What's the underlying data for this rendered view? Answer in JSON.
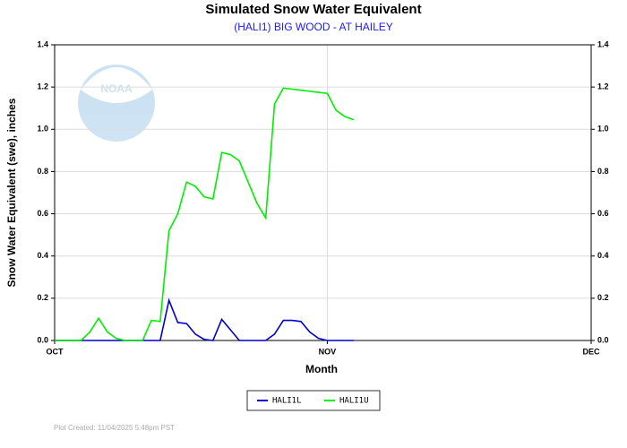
{
  "chart_data": {
    "type": "line",
    "title": "Simulated Snow Water Equivalent",
    "subtitle": "(HALI1) BIG WOOD - AT HAILEY",
    "y_label": "Snow Water Equivalent (swe),  inches",
    "x_label": "Month",
    "footer": "Plot Created: 11/04/2025 5:48pm PST",
    "x": [
      0,
      1,
      2,
      3,
      4,
      5,
      6,
      7,
      8,
      9,
      10,
      11,
      12,
      13,
      14,
      15,
      16,
      17,
      18,
      19,
      20,
      21,
      22,
      23,
      24,
      25,
      26,
      27,
      28,
      29,
      30,
      31,
      32,
      33,
      34
    ],
    "xlim": [
      0,
      61
    ],
    "xticks": [
      {
        "value": 0,
        "label": "OCT"
      },
      {
        "value": 31,
        "label": "NOV"
      },
      {
        "value": 61,
        "label": "DEC"
      }
    ],
    "ylim": [
      0,
      1.4
    ],
    "yticks": [
      {
        "value": 0,
        "label": "0.0"
      },
      {
        "value": 0.2,
        "label": "0.2"
      },
      {
        "value": 0.4,
        "label": "0.4"
      },
      {
        "value": 0.6,
        "label": "0.6"
      },
      {
        "value": 0.8,
        "label": "0.8"
      },
      {
        "value": 1,
        "label": "1.0"
      },
      {
        "value": 1.2,
        "label": "1.2"
      },
      {
        "value": 1.4,
        "label": "1.4"
      }
    ],
    "grid": true,
    "legend": "bottom",
    "series": [
      {
        "name": "HALI1L",
        "color": "#0000cc",
        "values": [
          0,
          0,
          0,
          0,
          0,
          0,
          0,
          0,
          0,
          0,
          0,
          0,
          0,
          0.19,
          0.085,
          0.08,
          0.03,
          0.005,
          0,
          0.1,
          0.05,
          0,
          0,
          0,
          0,
          0.03,
          0.095,
          0.095,
          0.09,
          0.04,
          0.01,
          0,
          0,
          0,
          0
        ]
      },
      {
        "name": "HALI1U",
        "color": "#00ee00",
        "values": [
          0,
          0,
          0,
          0,
          0.04,
          0.105,
          0.04,
          0.01,
          0,
          0,
          0,
          0.095,
          0.09,
          0.52,
          0.6,
          0.75,
          0.73,
          0.68,
          0.67,
          0.89,
          0.88,
          0.85,
          0.75,
          0.65,
          0.58,
          1.12,
          1.195,
          1.19,
          1.185,
          1.18,
          1.175,
          1.17,
          1.09,
          1.06,
          1.045
        ]
      }
    ]
  }
}
